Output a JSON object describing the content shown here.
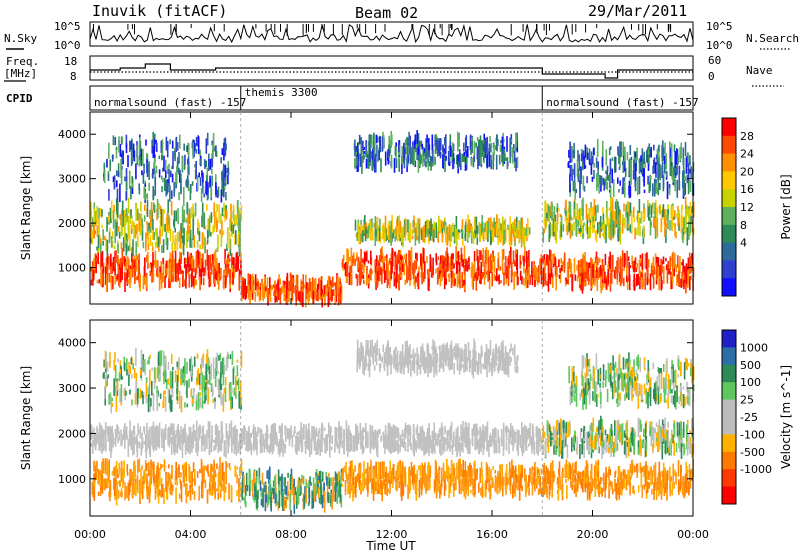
{
  "header": {
    "station": "Inuvik (fitACF)",
    "beam": "Beam 02",
    "date": "29/Mar/2011"
  },
  "labels": {
    "nsky": "N.Sky",
    "nsearch": "N.Search",
    "freq_line1": "Freq.",
    "freq_line2": "[MHz]",
    "nave": "Nave",
    "cpid": "CPID",
    "noise_top": "10^5",
    "noise_bottom": "10^0",
    "freq_top": "18",
    "freq_bottom": "8",
    "nave_top": "60",
    "nave_bottom": "0"
  },
  "cpid_segments": [
    {
      "label": "normalsound (fast) -157",
      "start_hour": 0
    },
    {
      "label": "themis 3300",
      "start_hour": 6.0
    },
    {
      "label": "normalsound (fast) -157",
      "start_hour": 18.0
    }
  ],
  "chart_data": [
    {
      "type": "heatmap",
      "title": "Power",
      "xlabel": "",
      "ylabel": "Slant Range [km]",
      "x_range_hours": [
        0,
        24
      ],
      "ylim": [
        180,
        4500
      ],
      "xticks": [
        "00:00",
        "04:00",
        "08:00",
        "12:00",
        "16:00",
        "20:00",
        "00:00"
      ],
      "yticks": [
        1000,
        2000,
        3000,
        4000
      ],
      "colorbar": {
        "label": "Power [dB]",
        "ticks": [
          28,
          24,
          20,
          16,
          12,
          8,
          4
        ],
        "colors": [
          "#ff0000",
          "#ff4a00",
          "#ff9000",
          "#ffc800",
          "#c8d200",
          "#5fb05f",
          "#2e8b57",
          "#2f6b9a",
          "#2f3fd0",
          "#1010ff"
        ]
      },
      "bands": [
        {
          "t0": 0,
          "t1": 6,
          "r0": 650,
          "r1": 1250,
          "level": "high"
        },
        {
          "t0": 6,
          "t1": 10,
          "r0": 300,
          "r1": 700,
          "level": "high"
        },
        {
          "t0": 10,
          "t1": 18,
          "r0": 650,
          "r1": 1300,
          "level": "high"
        },
        {
          "t0": 18,
          "t1": 24,
          "r0": 600,
          "r1": 1200,
          "level": "high"
        },
        {
          "t0": 10.5,
          "t1": 17.5,
          "r0": 1650,
          "r1": 2000,
          "level": "mid"
        },
        {
          "t0": 0,
          "t1": 6,
          "r0": 1400,
          "r1": 2400,
          "level": "mid"
        },
        {
          "t0": 18,
          "t1": 24,
          "r0": 1700,
          "r1": 2400,
          "level": "mid"
        },
        {
          "t0": 0.5,
          "t1": 5.5,
          "r0": 2600,
          "r1": 3900,
          "level": "low"
        },
        {
          "t0": 10.5,
          "t1": 17,
          "r0": 3300,
          "r1": 3900,
          "level": "low"
        },
        {
          "t0": 19,
          "t1": 24,
          "r0": 2700,
          "r1": 3700,
          "level": "low"
        }
      ]
    },
    {
      "type": "heatmap",
      "title": "Velocity",
      "xlabel": "Time UT",
      "ylabel": "Slant Range [km]",
      "x_range_hours": [
        0,
        24
      ],
      "ylim": [
        180,
        4500
      ],
      "xticks": [
        "00:00",
        "04:00",
        "08:00",
        "12:00",
        "16:00",
        "20:00",
        "00:00"
      ],
      "yticks": [
        1000,
        2000,
        3000,
        4000
      ],
      "colorbar": {
        "label": "Velocity [m s^-1]",
        "ticks": [
          1000,
          500,
          100,
          25,
          -25,
          -100,
          -500,
          -1000
        ],
        "colors": [
          "#2020c8",
          "#2c6fa8",
          "#2e8b57",
          "#5ec85e",
          "#bdbdbd",
          "#bdbdbd",
          "#ffb000",
          "#ff7a00",
          "#ff3a00",
          "#ff0000"
        ]
      },
      "bands": [
        {
          "t0": 0,
          "t1": 6,
          "r0": 600,
          "r1": 1300,
          "level": "neg"
        },
        {
          "t0": 6,
          "t1": 10,
          "r0": 400,
          "r1": 1100,
          "level": "pos"
        },
        {
          "t0": 10,
          "t1": 24,
          "r0": 700,
          "r1": 1250,
          "level": "neg"
        },
        {
          "t0": 0,
          "t1": 18,
          "r0": 1650,
          "r1": 2100,
          "level": "zero"
        },
        {
          "t0": 18,
          "t1": 24,
          "r0": 1600,
          "r1": 2200,
          "level": "mix"
        },
        {
          "t0": 0.5,
          "t1": 6,
          "r0": 2600,
          "r1": 3700,
          "level": "mix"
        },
        {
          "t0": 10.5,
          "t1": 17,
          "r0": 3400,
          "r1": 3900,
          "level": "zero"
        },
        {
          "t0": 19,
          "t1": 24,
          "r0": 2700,
          "r1": 3600,
          "level": "mix"
        }
      ]
    }
  ]
}
